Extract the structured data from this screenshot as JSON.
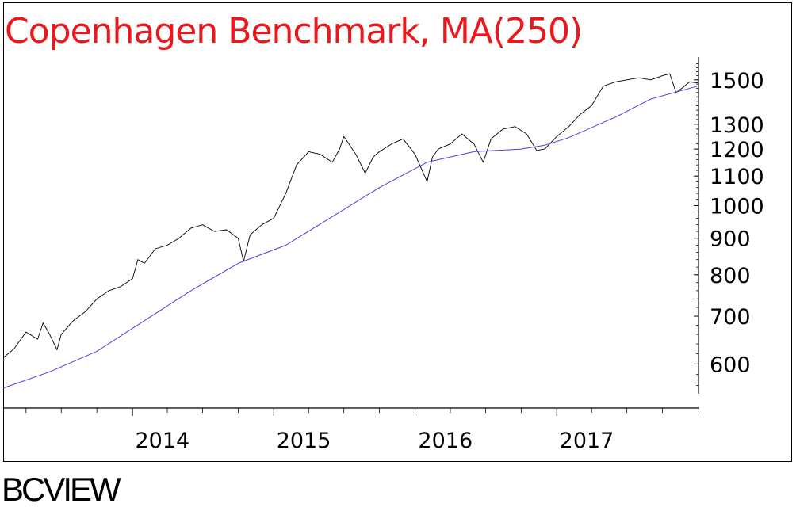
{
  "chart_data": {
    "type": "line",
    "title": "Copenhagen Benchmark, MA(250)",
    "y_scale": "log",
    "ylim": [
      545,
      1590
    ],
    "y_ticks": [
      600,
      700,
      800,
      900,
      1000,
      1100,
      1200,
      1300,
      1500
    ],
    "xlim": [
      "2013-02-01",
      "2017-12-31"
    ],
    "x_tick_labels": [
      "2014",
      "2015",
      "2016",
      "2017"
    ],
    "grid": false,
    "series": [
      {
        "role": "price",
        "color": "#000000",
        "points": [
          [
            "2013-02-01",
            612
          ],
          [
            "2013-03-01",
            630
          ],
          [
            "2013-04-01",
            665
          ],
          [
            "2013-05-01",
            650
          ],
          [
            "2013-05-15",
            685
          ],
          [
            "2013-06-01",
            660
          ],
          [
            "2013-06-20",
            628
          ],
          [
            "2013-07-01",
            660
          ],
          [
            "2013-08-01",
            690
          ],
          [
            "2013-09-01",
            710
          ],
          [
            "2013-10-01",
            740
          ],
          [
            "2013-11-01",
            760
          ],
          [
            "2013-12-01",
            770
          ],
          [
            "2014-01-01",
            790
          ],
          [
            "2014-01-15",
            840
          ],
          [
            "2014-02-01",
            830
          ],
          [
            "2014-03-01",
            870
          ],
          [
            "2014-04-01",
            880
          ],
          [
            "2014-05-01",
            900
          ],
          [
            "2014-06-01",
            930
          ],
          [
            "2014-07-01",
            940
          ],
          [
            "2014-08-01",
            920
          ],
          [
            "2014-09-01",
            925
          ],
          [
            "2014-10-01",
            900
          ],
          [
            "2014-10-15",
            835
          ],
          [
            "2014-11-01",
            910
          ],
          [
            "2014-12-01",
            940
          ],
          [
            "2015-01-01",
            960
          ],
          [
            "2015-02-01",
            1040
          ],
          [
            "2015-03-01",
            1140
          ],
          [
            "2015-04-01",
            1190
          ],
          [
            "2015-05-01",
            1180
          ],
          [
            "2015-06-01",
            1150
          ],
          [
            "2015-06-20",
            1200
          ],
          [
            "2015-07-01",
            1250
          ],
          [
            "2015-08-01",
            1180
          ],
          [
            "2015-08-25",
            1110
          ],
          [
            "2015-09-15",
            1170
          ],
          [
            "2015-10-01",
            1190
          ],
          [
            "2015-11-01",
            1220
          ],
          [
            "2015-12-01",
            1240
          ],
          [
            "2016-01-01",
            1180
          ],
          [
            "2016-02-01",
            1080
          ],
          [
            "2016-02-15",
            1170
          ],
          [
            "2016-03-01",
            1200
          ],
          [
            "2016-04-01",
            1220
          ],
          [
            "2016-05-01",
            1260
          ],
          [
            "2016-06-01",
            1220
          ],
          [
            "2016-06-25",
            1150
          ],
          [
            "2016-07-15",
            1240
          ],
          [
            "2016-08-15",
            1280
          ],
          [
            "2016-09-15",
            1290
          ],
          [
            "2016-10-15",
            1260
          ],
          [
            "2016-11-10",
            1195
          ],
          [
            "2016-12-01",
            1200
          ],
          [
            "2017-01-01",
            1250
          ],
          [
            "2017-02-01",
            1290
          ],
          [
            "2017-03-01",
            1340
          ],
          [
            "2017-04-01",
            1380
          ],
          [
            "2017-05-01",
            1470
          ],
          [
            "2017-06-01",
            1490
          ],
          [
            "2017-07-01",
            1500
          ],
          [
            "2017-08-01",
            1510
          ],
          [
            "2017-09-01",
            1500
          ],
          [
            "2017-10-01",
            1520
          ],
          [
            "2017-10-20",
            1530
          ],
          [
            "2017-11-05",
            1440
          ],
          [
            "2017-11-20",
            1460
          ],
          [
            "2017-12-10",
            1490
          ],
          [
            "2017-12-31",
            1485
          ]
        ]
      },
      {
        "role": "MA(250)",
        "color": "#4444dd",
        "points": [
          [
            "2013-02-01",
            555
          ],
          [
            "2013-06-01",
            585
          ],
          [
            "2013-10-01",
            625
          ],
          [
            "2014-02-01",
            690
          ],
          [
            "2014-06-01",
            760
          ],
          [
            "2014-10-01",
            830
          ],
          [
            "2015-02-01",
            880
          ],
          [
            "2015-06-01",
            965
          ],
          [
            "2015-10-01",
            1060
          ],
          [
            "2016-02-01",
            1150
          ],
          [
            "2016-06-01",
            1190
          ],
          [
            "2016-10-01",
            1200
          ],
          [
            "2016-12-01",
            1215
          ],
          [
            "2017-02-01",
            1245
          ],
          [
            "2017-06-01",
            1330
          ],
          [
            "2017-09-01",
            1410
          ],
          [
            "2017-12-31",
            1470
          ]
        ]
      }
    ]
  },
  "footer": {
    "brand": "BCVIEW"
  }
}
